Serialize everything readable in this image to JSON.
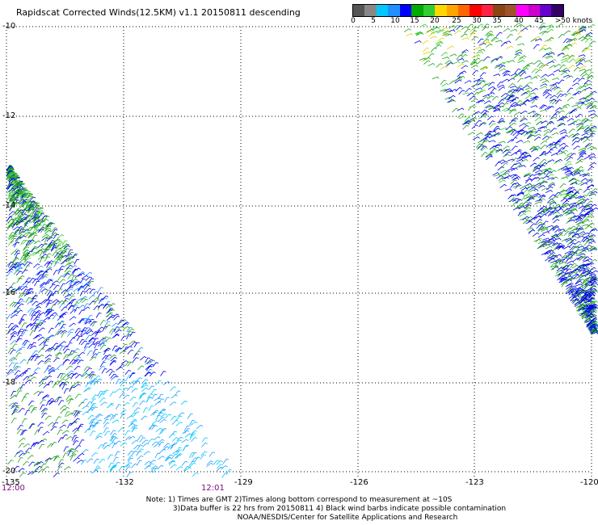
{
  "title": "Rapidscat Corrected Winds(12.5KM) v1.1 20150811 descending",
  "scale": {
    "colors": [
      "#555555",
      "#888888",
      "#00c8ff",
      "#1e90ff",
      "#0000ff",
      "#00aa00",
      "#32cd32",
      "#ffd700",
      "#ffa500",
      "#ff6600",
      "#ff0000",
      "#ff2244",
      "#8b4513",
      "#a0522d",
      "#ff00ff",
      "#cc00cc",
      "#6600cc",
      "#330066"
    ],
    "labels": [
      "0",
      "5",
      "10",
      "15",
      "20",
      "25",
      "30",
      "35",
      "40",
      "45",
      ">50 knots"
    ]
  },
  "lat_labels": [
    "-10",
    "-12",
    "-14",
    "-16",
    "-18",
    "-20"
  ],
  "lon_labels": [
    "-135",
    "-132",
    "-129",
    "-126",
    "-123",
    "-120"
  ],
  "times": [
    "12:00",
    "12:01"
  ],
  "notes": [
    "Note: 1) Times are GMT 2)Times along bottom correspond to measurement at ~10S",
    "3)Data buffer is 22 hrs from 20150811 4) Black wind barbs indicate possible contamination",
    "NOAA/NESDIS/Center for Satellite Applications and Research"
  ]
}
